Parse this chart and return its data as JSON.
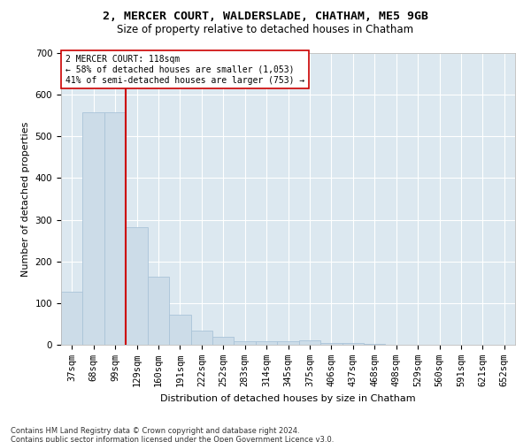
{
  "title1": "2, MERCER COURT, WALDERSLADE, CHATHAM, ME5 9GB",
  "title2": "Size of property relative to detached houses in Chatham",
  "xlabel": "Distribution of detached houses by size in Chatham",
  "ylabel": "Number of detached properties",
  "footnote": "Contains HM Land Registry data © Crown copyright and database right 2024.\nContains public sector information licensed under the Open Government Licence v3.0.",
  "categories": [
    "37sqm",
    "68sqm",
    "99sqm",
    "129sqm",
    "160sqm",
    "191sqm",
    "222sqm",
    "252sqm",
    "283sqm",
    "314sqm",
    "345sqm",
    "375sqm",
    "406sqm",
    "437sqm",
    "468sqm",
    "498sqm",
    "529sqm",
    "560sqm",
    "591sqm",
    "621sqm",
    "652sqm"
  ],
  "values": [
    128,
    558,
    558,
    283,
    163,
    72,
    33,
    20,
    8,
    8,
    8,
    10,
    4,
    4,
    2,
    0,
    0,
    0,
    0,
    0,
    0
  ],
  "bar_color": "#ccdce8",
  "bar_edge_color": "#aac4d8",
  "vline_color": "#cc0000",
  "vline_pos": 2.5,
  "annotation_text": "2 MERCER COURT: 118sqm\n← 58% of detached houses are smaller (1,053)\n41% of semi-detached houses are larger (753) →",
  "annotation_box_facecolor": "#ffffff",
  "annotation_box_edgecolor": "#cc0000",
  "ylim": [
    0,
    700
  ],
  "yticks": [
    0,
    100,
    200,
    300,
    400,
    500,
    600,
    700
  ],
  "background_color": "#dce8f0",
  "grid_color": "#ffffff",
  "title1_fontsize": 9.5,
  "title2_fontsize": 8.5,
  "xlabel_fontsize": 8,
  "ylabel_fontsize": 8,
  "tick_fontsize": 7.5,
  "annot_fontsize": 7,
  "footnote_fontsize": 6
}
